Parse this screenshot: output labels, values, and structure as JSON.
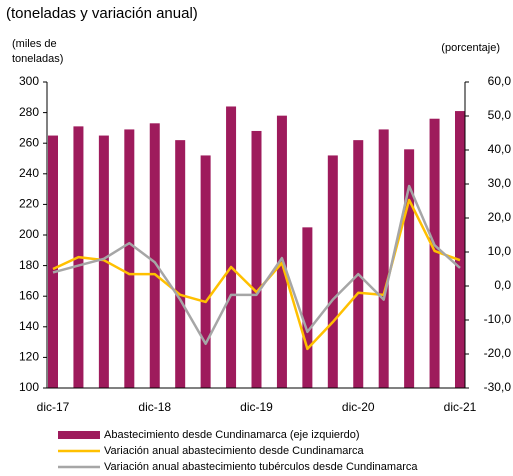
{
  "chart_data": {
    "type": "bar_line",
    "subtitle": "(toneladas y variación anual)",
    "y_label": "(miles de toneladas)",
    "y2_label": "(porcentaje)",
    "categories": [
      "dic-17",
      null,
      null,
      null,
      "dic-18",
      null,
      null,
      null,
      "dic-19",
      null,
      null,
      null,
      "dic-20",
      null,
      null,
      null,
      "dic-21"
    ],
    "series": [
      {
        "name": "Abastecimiento desde Cundinamarca (eje izquierdo)",
        "kind": "bar",
        "color": "#9e1b5c",
        "axis": "y",
        "values": [
          265,
          271,
          265,
          269,
          273,
          262,
          252,
          284,
          268,
          278,
          205,
          252,
          262,
          269,
          256,
          276,
          281
        ]
      },
      {
        "name": "Variación anual abastecimiento desde Cundinamarca",
        "kind": "line",
        "color": "#ffc000",
        "axis": "y2",
        "values": [
          5,
          8.5,
          7.6,
          3.5,
          3.5,
          -2.6,
          -4.7,
          5.6,
          -1.8,
          6.8,
          -18.5,
          -10.6,
          -2,
          -2.6,
          25.3,
          10.3,
          7.6
        ]
      },
      {
        "name": "Variación anual abastecimiento tubérculos desde Cundinamarca",
        "kind": "line",
        "color": "#a6a6a6",
        "axis": "y2",
        "values": [
          4,
          6,
          8,
          12.6,
          7,
          -4,
          -17,
          -2.6,
          -2.6,
          8.2,
          -13.5,
          -4,
          3.5,
          -4,
          29.4,
          12,
          5.3
        ]
      }
    ],
    "ylim": [
      100,
      300
    ],
    "yticks": [
      100,
      120,
      140,
      160,
      180,
      200,
      220,
      240,
      260,
      280,
      300
    ],
    "y2lim": [
      -30,
      60
    ],
    "y2ticks": [
      {
        "value": -30,
        "label": "-30,0"
      },
      {
        "value": -20,
        "label": "-20,0"
      },
      {
        "value": -10,
        "label": "-10,0"
      },
      {
        "value": 0,
        "label": "0,0"
      },
      {
        "value": 10,
        "label": "10,0"
      },
      {
        "value": 20,
        "label": "20,0"
      },
      {
        "value": 30,
        "label": "30,0"
      },
      {
        "value": 40,
        "label": "40,0"
      },
      {
        "value": 50,
        "label": "50,0"
      },
      {
        "value": 60,
        "label": "60,0"
      }
    ],
    "legend": "bottom"
  }
}
